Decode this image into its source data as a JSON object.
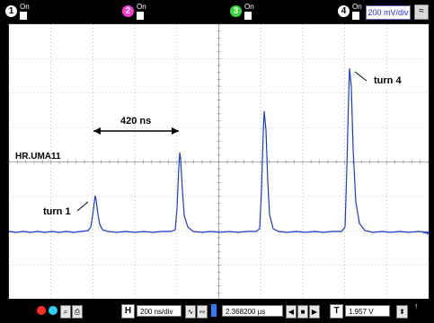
{
  "top_bar": {
    "channels": [
      {
        "number": "1",
        "state": "On"
      },
      {
        "number": "2",
        "state": "On"
      },
      {
        "number": "3",
        "state": "On"
      },
      {
        "number": "4",
        "state": "On"
      }
    ],
    "volts_per_div": "200 mV/div"
  },
  "display": {
    "trace_label": "HR.UMA11",
    "spacing_label": "420 ns",
    "annotations": [
      "turn 1",
      "turn 4"
    ],
    "colors": {
      "trace": "#1a3ad8",
      "grid": "#9a9a9a",
      "background": "#ffffff"
    }
  },
  "bottom_bar": {
    "timebase_tag": "H",
    "timebase": "200 ns/div",
    "position": "2.368200 µs",
    "trigger_tag": "T",
    "trigger_level": "1.957 V"
  }
}
